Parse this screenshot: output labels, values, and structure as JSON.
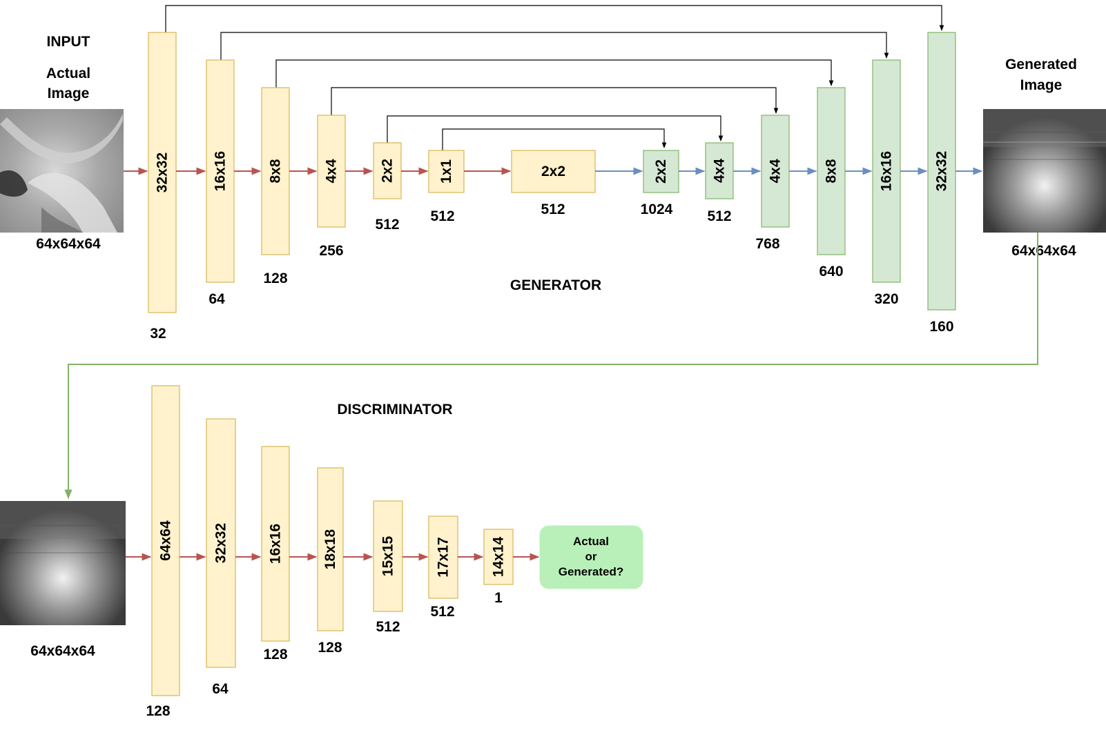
{
  "labels": {
    "input": "INPUT",
    "actual_image": [
      "Actual",
      "Image"
    ],
    "input_shape": "64x64x64",
    "generated_image": [
      "Generated",
      "Image"
    ],
    "generated_shape": "64x64x64",
    "generator": "GENERATOR",
    "discriminator": "DISCRIMINATOR",
    "disc_input_shape": "64x64x64",
    "output_box": [
      "Actual",
      "or",
      "Generated?"
    ]
  },
  "colors": {
    "encoder_fill": "#fff2cc",
    "encoder_stroke": "#d6b656",
    "decoder_fill": "#d5e8d4",
    "decoder_stroke": "#82b366",
    "red_arrow": "#b85450",
    "blue_arrow": "#6c8ebf",
    "green_arrow": "#82b366",
    "skip_arrow": "#000000",
    "output_fill": "#b9f0b9"
  },
  "generator": {
    "encoder": [
      {
        "size": "32x32",
        "channels": "32"
      },
      {
        "size": "16x16",
        "channels": "64"
      },
      {
        "size": "8x8",
        "channels": "128"
      },
      {
        "size": "4x4",
        "channels": "256"
      },
      {
        "size": "2x2",
        "channels": "512"
      },
      {
        "size": "1x1",
        "channels": "512"
      }
    ],
    "bottleneck": {
      "size": "2x2",
      "channels": "512"
    },
    "decoder": [
      {
        "size": "2x2",
        "channels": "1024"
      },
      {
        "size": "4x4",
        "channels": "512"
      },
      {
        "size": "4x4",
        "channels": "768"
      },
      {
        "size": "8x8",
        "channels": "640"
      },
      {
        "size": "16x16",
        "channels": "320"
      },
      {
        "size": "32x32",
        "channels": "160"
      }
    ]
  },
  "discriminator": {
    "layers": [
      {
        "size": "64x64",
        "channels": "128"
      },
      {
        "size": "32x32",
        "channels": "64"
      },
      {
        "size": "16x16",
        "channels": "128"
      },
      {
        "size": "18x18",
        "channels": "128"
      },
      {
        "size": "15x15",
        "channels": "512"
      },
      {
        "size": "17x17",
        "channels": "512"
      },
      {
        "size": "14x14",
        "channels": "1"
      }
    ]
  }
}
